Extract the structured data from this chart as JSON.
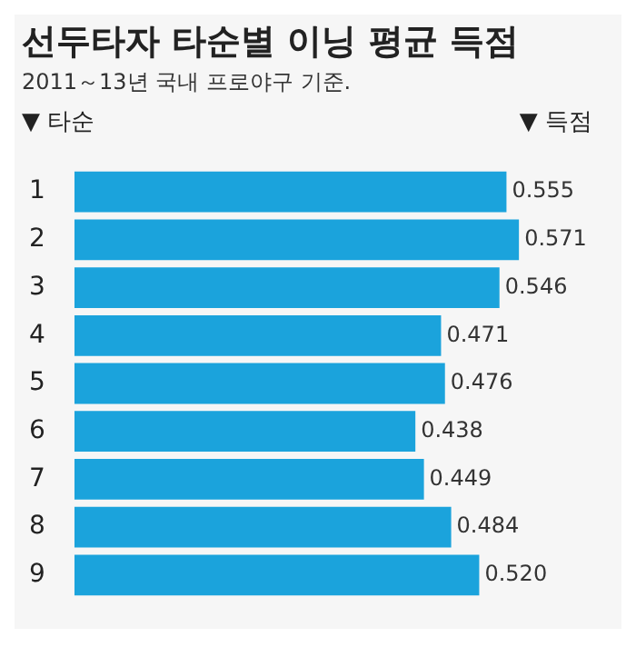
{
  "chart_data": {
    "type": "bar",
    "orientation": "horizontal",
    "title": "선두타자 타순별 이닝 평균 득점",
    "subtitle": "2011～13년 국내 프로야구 기준.",
    "ylabel": "▼ 타순",
    "xlabel": "▼ 득점",
    "categories": [
      "1",
      "2",
      "3",
      "4",
      "5",
      "6",
      "7",
      "8",
      "9"
    ],
    "values": [
      0.555,
      0.571,
      0.546,
      0.471,
      0.476,
      0.438,
      0.449,
      0.484,
      0.52
    ],
    "value_labels": [
      "0.555",
      "0.571",
      "0.546",
      "0.471",
      "0.476",
      "0.438",
      "0.449",
      "0.484",
      "0.520"
    ],
    "color": "#1ba3dc",
    "tick_labels": "y"
  }
}
